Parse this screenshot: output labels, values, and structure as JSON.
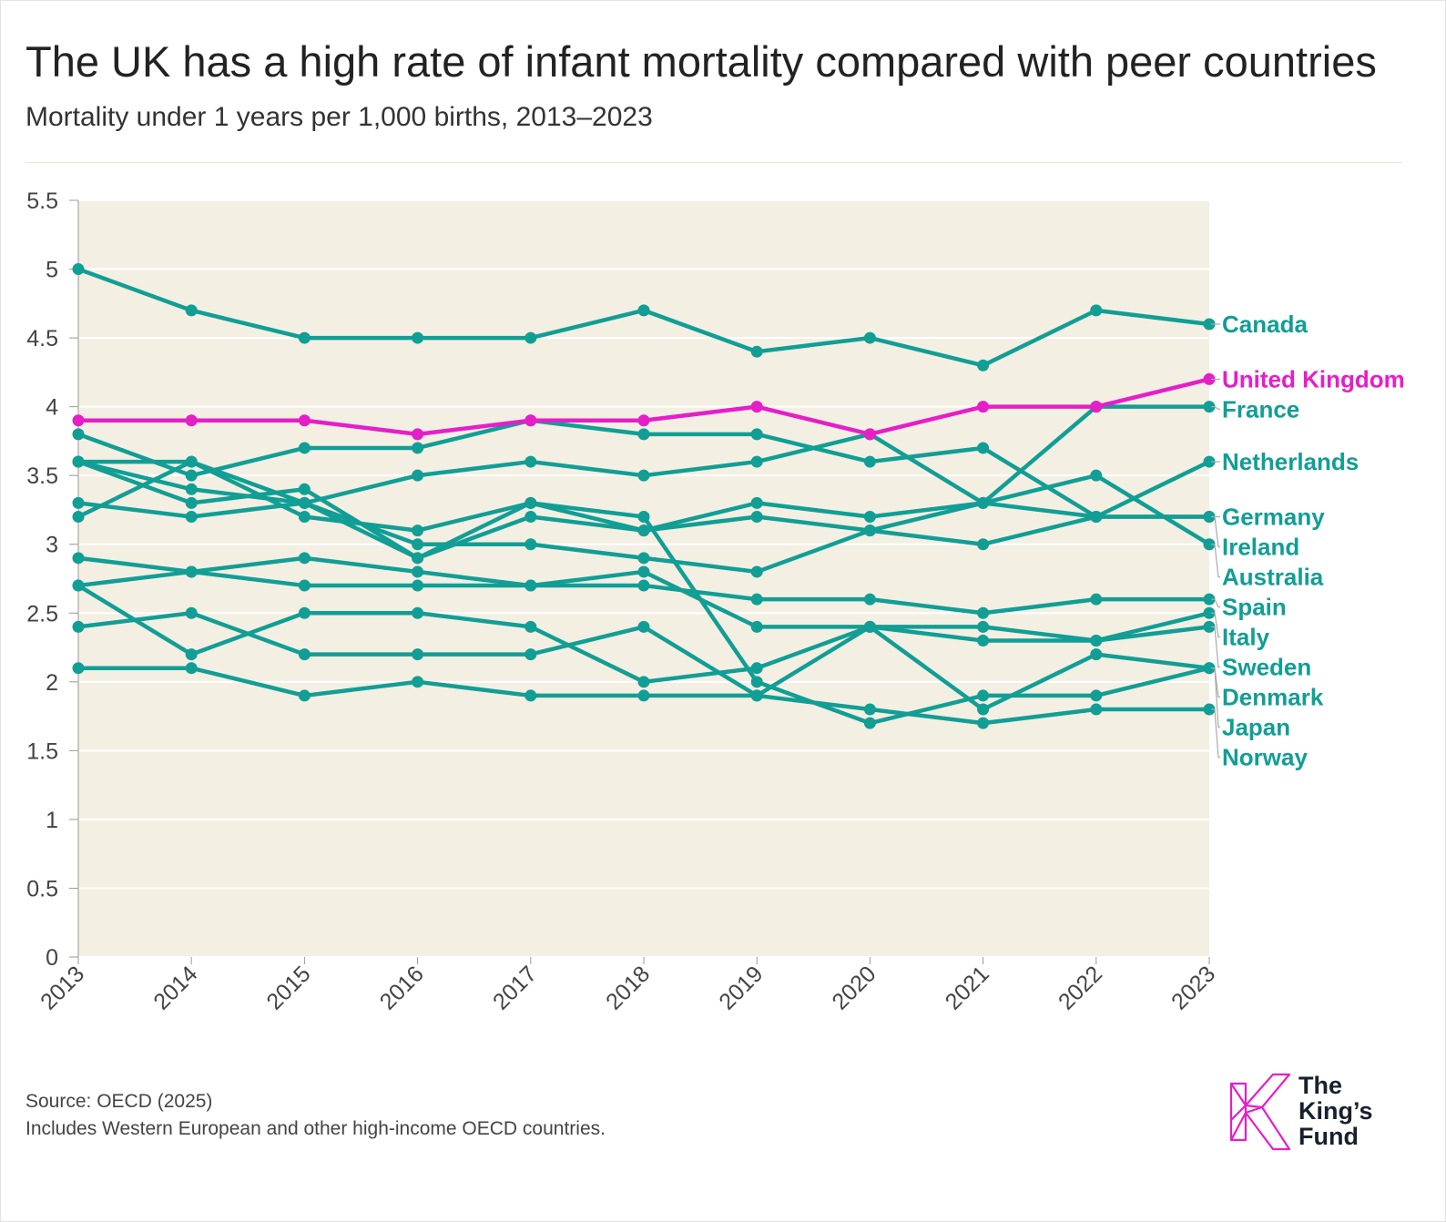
{
  "title": "The UK has a high rate of infant mortality compared with peer countries",
  "subtitle": "Mortality under 1 years per 1,000 births, 2013–2023",
  "footer": {
    "source": "Source: OECD (2025)",
    "note": "Includes Western European and other high-income OECD countries."
  },
  "logo": {
    "line1": "The",
    "line2": "King’s",
    "line3": "Fund",
    "icon": "kings-fund-k-logo-icon",
    "color": "#e61ec8"
  },
  "colors": {
    "highlight": "#e61ec8",
    "peer": "#119e95",
    "plot_bg": "#f4efe3",
    "grid": "#ffffff",
    "axis_text": "#444444"
  },
  "chart_data": {
    "type": "line",
    "title": "The UK has a high rate of infant mortality compared with peer countries",
    "subtitle": "Mortality under 1 years per 1,000 births, 2013–2023",
    "xlabel": "",
    "ylabel": "",
    "x": [
      "2013",
      "2014",
      "2015",
      "2016",
      "2017",
      "2018",
      "2019",
      "2020",
      "2021",
      "2022",
      "2023"
    ],
    "ylim": [
      0,
      5.5
    ],
    "yticks": [
      "0",
      "0.5",
      "1",
      "1.5",
      "2",
      "2.5",
      "3",
      "3.5",
      "4",
      "4.5",
      "5",
      "5.5"
    ],
    "grid": true,
    "legend": "direct labels at right end of lines",
    "series": [
      {
        "name": "Canada",
        "values": [
          5.0,
          4.7,
          4.5,
          4.5,
          4.5,
          4.7,
          4.4,
          4.5,
          4.3,
          4.7,
          4.6
        ],
        "highlight": false
      },
      {
        "name": "France",
        "values": [
          3.6,
          3.4,
          3.3,
          3.0,
          3.0,
          2.9,
          2.8,
          3.1,
          3.3,
          4.0,
          4.0
        ],
        "highlight": false
      },
      {
        "name": "Netherlands",
        "values": [
          3.3,
          3.2,
          3.3,
          3.5,
          3.6,
          3.5,
          3.6,
          3.8,
          3.3,
          3.2,
          3.6
        ],
        "highlight": false
      },
      {
        "name": "Australia",
        "values": [
          3.2,
          3.6,
          3.3,
          2.9,
          3.3,
          3.1,
          3.3,
          3.2,
          3.3,
          3.5,
          3.0
        ],
        "highlight": false
      },
      {
        "name": "Germany",
        "values": [
          3.6,
          3.3,
          3.4,
          2.9,
          3.2,
          3.1,
          3.2,
          3.1,
          3.0,
          3.2,
          3.2
        ],
        "highlight": false
      },
      {
        "name": "Ireland",
        "values": [
          3.8,
          3.5,
          3.7,
          3.7,
          3.9,
          3.8,
          3.8,
          3.6,
          3.7,
          3.2,
          3.2
        ],
        "highlight": false
      },
      {
        "name": "Spain",
        "values": [
          2.7,
          2.8,
          2.7,
          2.7,
          2.7,
          2.7,
          2.6,
          2.6,
          2.5,
          2.6,
          2.6
        ],
        "highlight": false
      },
      {
        "name": "Italy",
        "values": [
          2.9,
          2.8,
          2.9,
          2.8,
          2.7,
          2.8,
          2.4,
          2.4,
          2.3,
          2.3,
          2.5
        ],
        "highlight": false
      },
      {
        "name": "Denmark",
        "values": [
          3.6,
          3.6,
          3.2,
          3.1,
          3.3,
          3.2,
          2.0,
          1.7,
          1.9,
          1.9,
          2.1
        ],
        "highlight": false
      },
      {
        "name": "Norway",
        "values": [
          2.4,
          2.5,
          2.2,
          2.2,
          2.2,
          2.4,
          1.9,
          1.8,
          1.7,
          1.8,
          1.8
        ],
        "highlight": false
      },
      {
        "name": "Sweden",
        "values": [
          2.7,
          2.2,
          2.5,
          2.5,
          2.4,
          2.0,
          2.1,
          2.4,
          2.4,
          2.3,
          2.4
        ],
        "highlight": false
      },
      {
        "name": "Japan",
        "values": [
          2.1,
          2.1,
          1.9,
          2.0,
          1.9,
          1.9,
          1.9,
          2.4,
          1.8,
          2.2,
          2.1
        ],
        "highlight": false
      },
      {
        "name": "United Kingdom",
        "values": [
          3.9,
          3.9,
          3.9,
          3.8,
          3.9,
          3.9,
          4.0,
          3.8,
          4.0,
          4.0,
          4.2
        ],
        "highlight": true
      }
    ]
  }
}
